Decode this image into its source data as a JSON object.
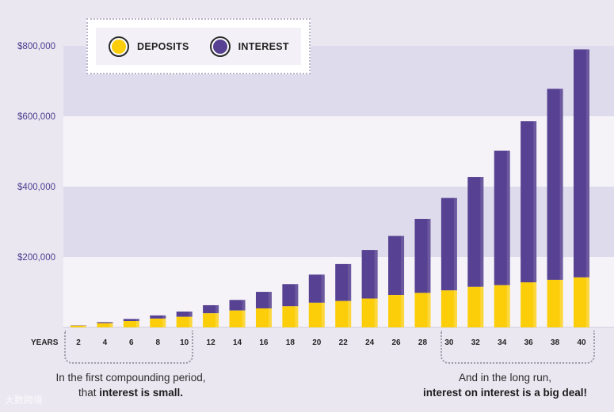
{
  "legend": {
    "deposits_label": "DEPOSITS",
    "interest_label": "INTEREST"
  },
  "colors": {
    "background": "#ebe7f1",
    "band_dark": "#dedbec",
    "band_light": "#f5f3f8",
    "deposits": "#fcce0a",
    "interest": "#574192",
    "axis_text": "#4b3c8e",
    "tick_text": "#232323"
  },
  "annotations": {
    "left_line1": "In the first compounding period,",
    "left_line2_pre": "that ",
    "left_line2_bold": "interest is small.",
    "right_line1": "And in the long run,",
    "right_line2_bold": "interest on interest is a big deal!"
  },
  "watermark": "大数跨境",
  "chart_data": {
    "type": "bar",
    "stacked": true,
    "xlabel": "YEARS",
    "ylabel": "",
    "ylim": [
      0,
      800000
    ],
    "yticks": [
      0,
      200000,
      400000,
      600000,
      800000
    ],
    "ytick_labels": [
      "",
      "$200,000",
      "$400,000",
      "$600,000",
      "$800,000"
    ],
    "legend_position": "top-left",
    "categories": [
      "2",
      "4",
      "6",
      "8",
      "10",
      "12",
      "14",
      "16",
      "18",
      "20",
      "22",
      "24",
      "26",
      "28",
      "30",
      "32",
      "34",
      "36",
      "38",
      "40"
    ],
    "series": [
      {
        "name": "Deposits",
        "values": [
          5000,
          12000,
          18000,
          25000,
          30000,
          40000,
          48000,
          54000,
          60000,
          70000,
          75000,
          82000,
          92000,
          98000,
          105000,
          115000,
          120000,
          128000,
          135000,
          142000
        ]
      },
      {
        "name": "Interest",
        "values": [
          1000,
          3000,
          6000,
          9000,
          15000,
          23000,
          30000,
          47000,
          63000,
          80000,
          105000,
          138000,
          168000,
          210000,
          263000,
          312000,
          382000,
          458000,
          543000,
          648000
        ]
      }
    ]
  }
}
